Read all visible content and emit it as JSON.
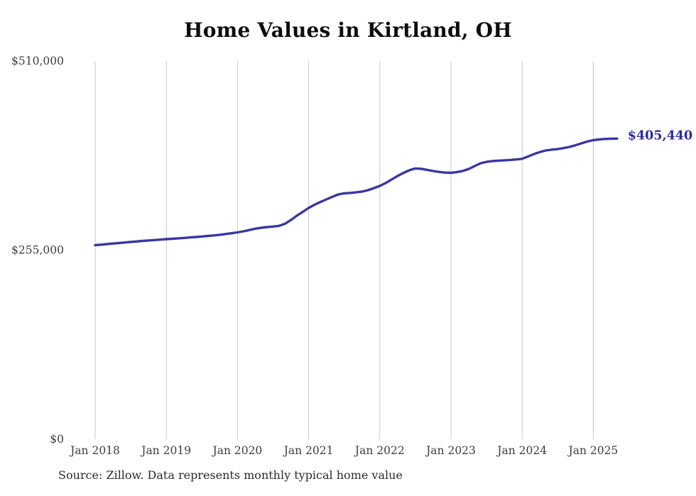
{
  "title": "Home Values in Kirtland, OH",
  "source_note": "Source: Zillow. Data represents monthly typical home value",
  "colors": {
    "line": "#3a37a1",
    "end_label": "#2e2b9c",
    "grid": "#c9c9c9",
    "axis_text": "#3d3d3d",
    "title_text": "#0d0d0d",
    "source_text": "#2a2a2a",
    "background": "#ffffff"
  },
  "chart_data": {
    "type": "line",
    "title": "Home Values in Kirtland, OH",
    "xlabel": "",
    "ylabel": "",
    "ylim": [
      0,
      510000
    ],
    "grid": "vertical-only",
    "legend": "none",
    "x_tick_labels": [
      "Jan 2018",
      "Jan 2019",
      "Jan 2020",
      "Jan 2021",
      "Jan 2022",
      "Jan 2023",
      "Jan 2024",
      "Jan 2025"
    ],
    "y_ticks": [
      {
        "label": "$0",
        "value": 0
      },
      {
        "label": "$255,000",
        "value": 255000
      },
      {
        "label": "$510,000",
        "value": 510000
      }
    ],
    "start_month": "2018-01",
    "end_month": "2025-05",
    "end_value": 405440,
    "end_value_label": "$405,440",
    "series": [
      {
        "name": "Monthly typical home value",
        "values": [
          261700,
          262400,
          263100,
          263900,
          264600,
          265300,
          266000,
          266700,
          267400,
          268000,
          268600,
          269200,
          269800,
          270300,
          270900,
          271500,
          272100,
          272700,
          273400,
          274100,
          274800,
          275700,
          276700,
          277800,
          278900,
          280400,
          282100,
          283900,
          285200,
          286100,
          286800,
          287700,
          290500,
          295600,
          301400,
          306600,
          311900,
          316200,
          320000,
          323400,
          327000,
          330100,
          331600,
          332100,
          332900,
          333900,
          335900,
          338600,
          341600,
          345500,
          350300,
          355000,
          359200,
          362700,
          365100,
          364700,
          363200,
          361700,
          360400,
          359600,
          359300,
          360200,
          361800,
          364500,
          368400,
          372200,
          374000,
          375100,
          375700,
          376100,
          376600,
          377300,
          378100,
          381200,
          384600,
          387300,
          389400,
          390500,
          391300,
          392600,
          394200,
          396500,
          399000,
          401500,
          403300,
          404300,
          404900,
          405200,
          405440
        ]
      }
    ]
  }
}
